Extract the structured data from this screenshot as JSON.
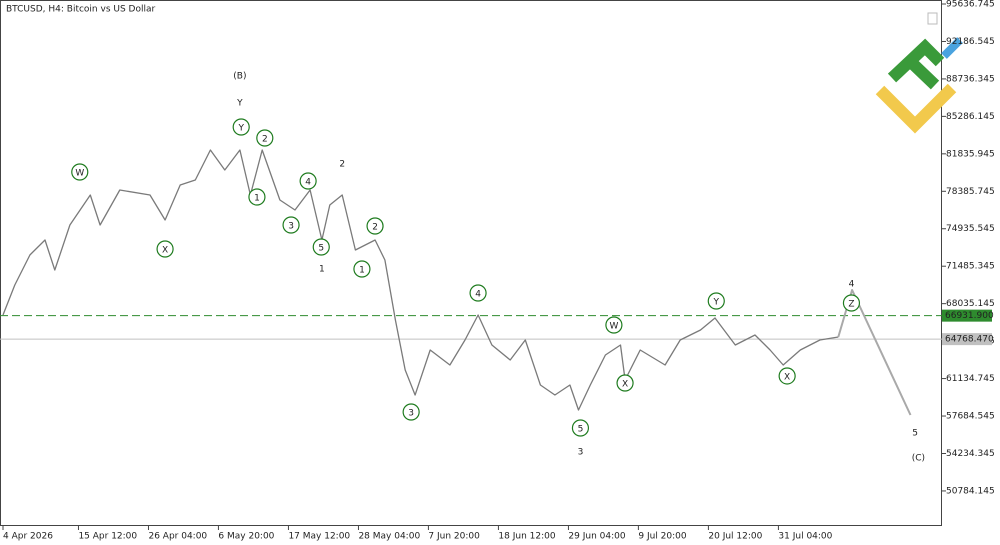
{
  "chart_data": {
    "type": "line",
    "title": "BTCUSD, H4:  Bitcoin vs US Dollar",
    "xlim": [
      0,
      143.1
    ],
    "xticks": [
      {
        "value": 0,
        "label": "4 Apr 2026"
      },
      {
        "value": 11.5,
        "label": "15 Apr 12:00"
      },
      {
        "value": 22.17,
        "label": "26 Apr 04:00"
      },
      {
        "value": 32.83,
        "label": "6 May 20:00"
      },
      {
        "value": 43.5,
        "label": "17 May 12:00"
      },
      {
        "value": 54.17,
        "label": "28 May 04:00"
      },
      {
        "value": 64.83,
        "label": "7 Jun 20:00"
      },
      {
        "value": 75.5,
        "label": "18 Jun 12:00"
      },
      {
        "value": 86.17,
        "label": "29 Jun 04:00"
      },
      {
        "value": 96.83,
        "label": "9 Jul 20:00"
      },
      {
        "value": 107.5,
        "label": "20 Jul 12:00"
      },
      {
        "value": 118.17,
        "label": "31 Jul 04:00"
      }
    ],
    "ylim": [
      47555,
      96006
    ],
    "yticks": [
      95636.745,
      92186.545,
      88736.345,
      85286.145,
      81835.945,
      78385.745,
      74935.545,
      71485.345,
      68035.145,
      64584.945,
      61134.745,
      57684.545,
      54234.345,
      50784.145
    ],
    "series": [
      {
        "color": "#7a7a7a",
        "width": 1.3,
        "x": [
          0,
          1.8,
          4.1,
          6.4,
          7.9,
          10.2,
          13.3,
          14.8,
          17.8,
          22.4,
          24.7,
          27.0,
          29.3,
          31.6,
          33.8,
          36.1,
          37.7,
          39.5,
          42.2,
          44.5,
          46.8,
          48.6,
          49.8,
          51.7,
          53.7,
          56.7,
          58.2,
          59.8,
          61.3,
          62.8,
          65.1,
          68.1,
          70.4,
          72.4,
          74.5,
          77.3,
          79.6,
          81.9,
          84.1,
          86.4,
          87.7,
          89.5,
          91.8,
          94.1,
          94.8,
          97.1,
          100.9,
          103.2,
          106.3,
          108.5,
          111.6,
          114.6,
          116.9,
          118.9,
          121.5,
          124.5,
          127.3
        ],
        "values": [
          66990,
          69754,
          72517,
          73899,
          71136,
          75280,
          78043,
          75280,
          78504,
          78043,
          75741,
          78964,
          79425,
          82188,
          80346,
          82188,
          78043,
          82188,
          77583,
          76662,
          78504,
          73899,
          77122,
          78043,
          72978,
          73899,
          72057,
          66531,
          61925,
          59622,
          63768,
          62386,
          64689,
          66990,
          64228,
          62846,
          64689,
          60544,
          59622,
          60544,
          58240,
          60544,
          63308,
          64228,
          61006,
          63768,
          62386,
          64689,
          65610,
          66715,
          64228,
          65149,
          63768,
          62386,
          63768,
          64689,
          64964
        ]
      },
      {
        "color": "#a9a9a9",
        "width": 2,
        "x": [
          127.3,
          129.4,
          138.3
        ],
        "values": [
          64964,
          69294,
          57780
        ]
      }
    ],
    "levels": [
      {
        "value": 66931.9,
        "label": "66931.900",
        "color": "#2e8b2e",
        "dashed": true
      },
      {
        "value": 64768.47,
        "label": "64768.470",
        "color": "#c0c0c0",
        "dashed": false
      }
    ],
    "annotations": [
      {
        "text": "(B)",
        "x": 36.1,
        "y": 89098,
        "color": "#1a237e",
        "size": 20,
        "circled": false
      },
      {
        "text": "Y",
        "x": 36.1,
        "y": 86611,
        "color": "#8b0000",
        "size": 18,
        "circled": false
      },
      {
        "text": "Y",
        "x": 36.3,
        "y": 84308,
        "color": "#1e7b1e",
        "size": 12,
        "circled": true
      },
      {
        "text": "2",
        "x": 39.9,
        "y": 83295,
        "color": "#1e7b1e",
        "size": 12,
        "circled": true
      },
      {
        "text": "1",
        "x": 38.7,
        "y": 77860,
        "color": "#1e7b1e",
        "size": 12,
        "circled": true
      },
      {
        "text": "2",
        "x": 51.7,
        "y": 80992,
        "color": "#8b0000",
        "size": 20,
        "circled": false
      },
      {
        "text": "4",
        "x": 46.5,
        "y": 79334,
        "color": "#1e7b1e",
        "size": 12,
        "circled": true
      },
      {
        "text": "3",
        "x": 43.9,
        "y": 75280,
        "color": "#1e7b1e",
        "size": 12,
        "circled": true
      },
      {
        "text": "5",
        "x": 48.5,
        "y": 73254,
        "color": "#1e7b1e",
        "size": 12,
        "circled": true
      },
      {
        "text": "1",
        "x": 48.6,
        "y": 71320,
        "color": "#8b0000",
        "size": 20,
        "circled": false
      },
      {
        "text": "2",
        "x": 56.7,
        "y": 75188,
        "color": "#1e7b1e",
        "size": 12,
        "circled": true
      },
      {
        "text": "1",
        "x": 54.7,
        "y": 71228,
        "color": "#1e7b1e",
        "size": 12,
        "circled": true
      },
      {
        "text": "W",
        "x": 11.7,
        "y": 80163,
        "color": "#1e7b1e",
        "size": 12,
        "circled": true
      },
      {
        "text": "X",
        "x": 24.7,
        "y": 73070,
        "color": "#1e7b1e",
        "size": 12,
        "circled": true
      },
      {
        "text": "4",
        "x": 72.4,
        "y": 69017,
        "color": "#1e7b1e",
        "size": 12,
        "circled": true
      },
      {
        "text": "3",
        "x": 62.2,
        "y": 58056,
        "color": "#1e7b1e",
        "size": 12,
        "circled": true
      },
      {
        "text": "5",
        "x": 88.0,
        "y": 56582,
        "color": "#1e7b1e",
        "size": 12,
        "circled": true
      },
      {
        "text": "3",
        "x": 88.0,
        "y": 54464,
        "color": "#8b0000",
        "size": 20,
        "circled": false
      },
      {
        "text": "W",
        "x": 93.1,
        "y": 66070,
        "color": "#1e7b1e",
        "size": 12,
        "circled": true
      },
      {
        "text": "X",
        "x": 94.8,
        "y": 60728,
        "color": "#1e7b1e",
        "size": 12,
        "circled": true
      },
      {
        "text": "Y",
        "x": 108.7,
        "y": 68281,
        "color": "#1e7b1e",
        "size": 12,
        "circled": true
      },
      {
        "text": "X",
        "x": 119.5,
        "y": 61374,
        "color": "#1e7b1e",
        "size": 12,
        "circled": true
      },
      {
        "text": "Z",
        "x": 129.3,
        "y": 68097,
        "color": "#1e7b1e",
        "size": 12,
        "circled": true
      },
      {
        "text": "4",
        "x": 129.3,
        "y": 69939,
        "color": "#8b0000",
        "size": 20,
        "circled": false
      },
      {
        "text": "5",
        "x": 139.0,
        "y": 56214,
        "color": "#8b0000",
        "size": 20,
        "circled": false
      },
      {
        "text": "(C)",
        "x": 139.5,
        "y": 53911,
        "color": "#1a237e",
        "size": 20,
        "circled": false
      }
    ]
  }
}
